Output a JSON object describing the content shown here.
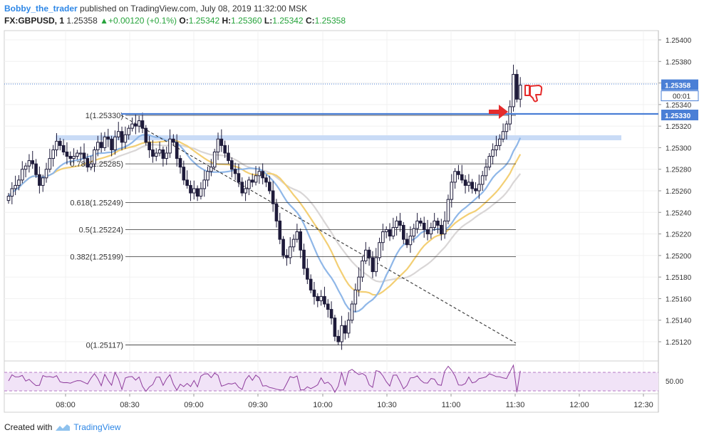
{
  "header": {
    "author": "Bobby_the_trader",
    "published": "published on TradingView.com, July 08, 2019 11:32:00 MSK",
    "symbol": "FX:GBPUSD, 1",
    "last": "1.25358",
    "change": "+0.00120 (+0.1%)",
    "open_label": "O:",
    "open": "1.25342",
    "high_label": "H:",
    "high": "1.25360",
    "low_label": "L:",
    "low": "1.25342",
    "close_label": "C:",
    "close": "1.25358"
  },
  "footer": {
    "created_with": "Created with",
    "brand": "TradingView"
  },
  "colors": {
    "candle": "#1e1b3a",
    "ma_blue": "#8fb7e8",
    "ma_orange": "#f3cf74",
    "ma_gray": "#d9d6d6",
    "level": "#4a7fd6",
    "zone": "#c9dbf6",
    "rsi": "#8e3c9c",
    "rsi_band": "#f1e3f7",
    "arrow": "#e52b2b",
    "price_tag": "#4a7fd6"
  },
  "chart_data": {
    "type": "candlestick",
    "y_ticks": [
      "1.25400",
      "1.25380",
      "1.25360",
      "1.25340",
      "1.25320",
      "1.25300",
      "1.25280",
      "1.25260",
      "1.25240",
      "1.25220",
      "1.25200",
      "1.25180",
      "1.25160",
      "1.25140",
      "1.25120"
    ],
    "x_ticks": [
      "08:00",
      "08:30",
      "09:00",
      "09:30",
      "10:00",
      "10:30",
      "11:00",
      "11:30",
      "12:00",
      "12:30"
    ],
    "price_tags": {
      "last": "1.25358",
      "countdown": "00:01",
      "level": "1.25330"
    },
    "rsi_tick": "50.00",
    "fib_levels": [
      {
        "label": "1(1.25330)",
        "value": 1.2533
      },
      {
        "label": "0.786(1.25285)",
        "value": 1.25285
      },
      {
        "label": "0.618(1.25249)",
        "value": 1.25249
      },
      {
        "label": "0.5(1.25224)",
        "value": 1.25224
      },
      {
        "label": "0.382(1.25199)",
        "value": 1.25199
      },
      {
        "label": "0(1.25117)",
        "value": 1.25117
      }
    ],
    "closes": [
      1.25255,
      1.25262,
      1.25265,
      1.2527,
      1.2528,
      1.25283,
      1.25288,
      1.25285,
      1.25275,
      1.25265,
      1.25272,
      1.2528,
      1.2529,
      1.25298,
      1.25306,
      1.25302,
      1.25296,
      1.25292,
      1.2529,
      1.25292,
      1.25295,
      1.25295,
      1.2529,
      1.25282,
      1.25285,
      1.25298,
      1.25305,
      1.253,
      1.2531,
      1.25308,
      1.25298,
      1.2531,
      1.25315,
      1.25305,
      1.25312,
      1.25318,
      1.25322,
      1.2532,
      1.25325,
      1.25318,
      1.25305,
      1.25298,
      1.25292,
      1.25295,
      1.25298,
      1.2529,
      1.25295,
      1.25308,
      1.25305,
      1.2529,
      1.25282,
      1.2527,
      1.25265,
      1.25258,
      1.25262,
      1.25255,
      1.25262,
      1.2527,
      1.25278,
      1.25282,
      1.25296,
      1.25308,
      1.25302,
      1.25295,
      1.25288,
      1.2528,
      1.25276,
      1.25268,
      1.25258,
      1.25262,
      1.2527,
      1.25268,
      1.25274,
      1.25278,
      1.25272,
      1.25268,
      1.2526,
      1.25248,
      1.25232,
      1.25215,
      1.252,
      1.25198,
      1.25208,
      1.25215,
      1.25222,
      1.25205,
      1.25188,
      1.25178,
      1.25168,
      1.25162,
      1.25158,
      1.25162,
      1.25155,
      1.2515,
      1.25142,
      1.25125,
      1.2512,
      1.25135,
      1.25128,
      1.2514,
      1.25155,
      1.25168,
      1.2518,
      1.25195,
      1.25205,
      1.25198,
      1.25185,
      1.25198,
      1.25212,
      1.25222,
      1.25224,
      1.25218,
      1.25226,
      1.25232,
      1.25228,
      1.25215,
      1.2521,
      1.25218,
      1.25225,
      1.25232,
      1.2523,
      1.25224,
      1.2522,
      1.25226,
      1.25232,
      1.25228,
      1.2522,
      1.25232,
      1.25252,
      1.25268,
      1.25278,
      1.25275,
      1.2527,
      1.25265,
      1.25268,
      1.25262,
      1.2526,
      1.25266,
      1.25274,
      1.25282,
      1.25292,
      1.25298,
      1.25302,
      1.25308,
      1.25315,
      1.25322,
      1.25338,
      1.25368,
      1.25345,
      1.25358
    ]
  }
}
